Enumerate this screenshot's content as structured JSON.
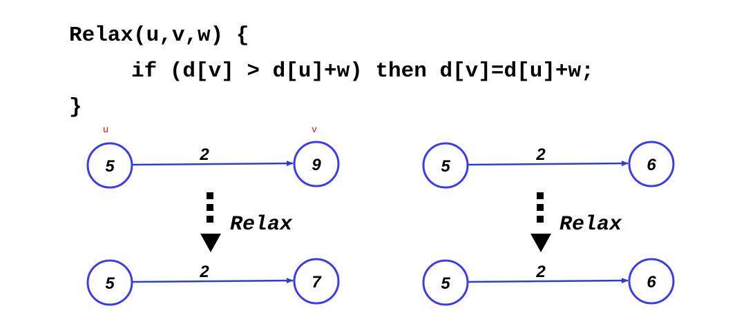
{
  "code": {
    "line1": "Relax(u,v,w) {",
    "line2": "if (d[v] > d[u]+w) then d[v]=d[u]+w;",
    "line3": "}"
  },
  "labels": {
    "u": "u",
    "v": "v"
  },
  "colors": {
    "node_stroke": "#3a3af0",
    "edge": "#2b3fcf",
    "uv_label": "#e01010"
  },
  "examples": [
    {
      "before": {
        "u": "5",
        "v": "9",
        "w": "2"
      },
      "action": "Relax",
      "after": {
        "u": "5",
        "v": "7",
        "w": "2"
      }
    },
    {
      "before": {
        "u": "5",
        "v": "6",
        "w": "2"
      },
      "action": "Relax",
      "after": {
        "u": "5",
        "v": "6",
        "w": "2"
      }
    }
  ]
}
